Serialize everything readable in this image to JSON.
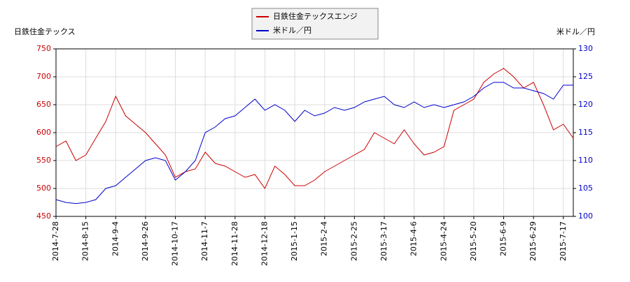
{
  "chart_data": {
    "type": "line",
    "legend": "top-center",
    "grid": true,
    "y_label": "日鉄住金テックス",
    "y2_label": "米ドル／円",
    "x": [
      "2014-7-28",
      null,
      null,
      "2014-8-15",
      null,
      null,
      "2014-9-4",
      null,
      null,
      "2014-9-26",
      null,
      null,
      "2014-10-17",
      null,
      null,
      "2014-11-7",
      null,
      null,
      "2014-11-28",
      null,
      null,
      "2014-12-18",
      null,
      null,
      "2015-1-15",
      null,
      null,
      "2015-2-4",
      null,
      null,
      "2015-2-25",
      null,
      null,
      "2015-3-17",
      null,
      null,
      "2015-4-6",
      null,
      null,
      "2015-4-24",
      null,
      null,
      "2015-5-20",
      null,
      null,
      "2015-6-9",
      null,
      null,
      "2015-6-29",
      null,
      null,
      "2015-7-17",
      null
    ],
    "xticks": [
      "2014-7-28",
      "2014-8-15",
      "2014-9-4",
      "2014-9-26",
      "2014-10-17",
      "2014-11-7",
      "2014-11-28",
      "2014-12-18",
      "2015-1-15",
      "2015-2-4",
      "2015-2-25",
      "2015-3-17",
      "2015-4-6",
      "2015-4-24",
      "2015-5-20",
      "2015-6-9",
      "2015-6-29",
      "2015-7-17"
    ],
    "ylim": [
      450,
      750
    ],
    "yticks": [
      450,
      500,
      550,
      600,
      650,
      700,
      750
    ],
    "y2lim": [
      100,
      130
    ],
    "y2ticks": [
      100,
      105,
      110,
      115,
      120,
      125,
      130
    ],
    "series": [
      {
        "name": "日鉄住金テックスエンジ",
        "color": "#cc0000",
        "values": [
          575,
          585,
          550,
          560,
          590,
          620,
          665,
          630,
          615,
          600,
          580,
          560,
          520,
          530,
          535,
          565,
          545,
          540,
          530,
          520,
          525,
          500,
          540,
          525,
          505,
          505,
          515,
          530,
          540,
          550,
          560,
          570,
          600,
          590,
          580,
          605,
          580,
          560,
          565,
          575,
          640,
          650,
          660,
          690,
          705,
          715,
          700,
          680,
          690,
          650,
          605,
          615,
          590
        ]
      },
      {
        "name": "米ドル／円",
        "color": "#0000cc",
        "axis": "y2",
        "values": [
          103,
          102.5,
          102.3,
          102.5,
          103,
          105,
          105.5,
          107,
          108.5,
          110,
          110.5,
          110,
          106.5,
          108,
          110,
          115,
          116,
          117.5,
          118,
          119.5,
          121,
          119,
          120,
          119,
          117,
          119,
          118,
          118.5,
          119.5,
          119,
          119.5,
          120.5,
          121,
          121.5,
          120,
          119.5,
          120.5,
          119.5,
          120,
          119.5,
          120,
          120.5,
          121.5,
          123,
          124,
          124,
          123,
          123,
          122.5,
          122,
          121,
          123.5,
          123.5
        ]
      }
    ]
  }
}
